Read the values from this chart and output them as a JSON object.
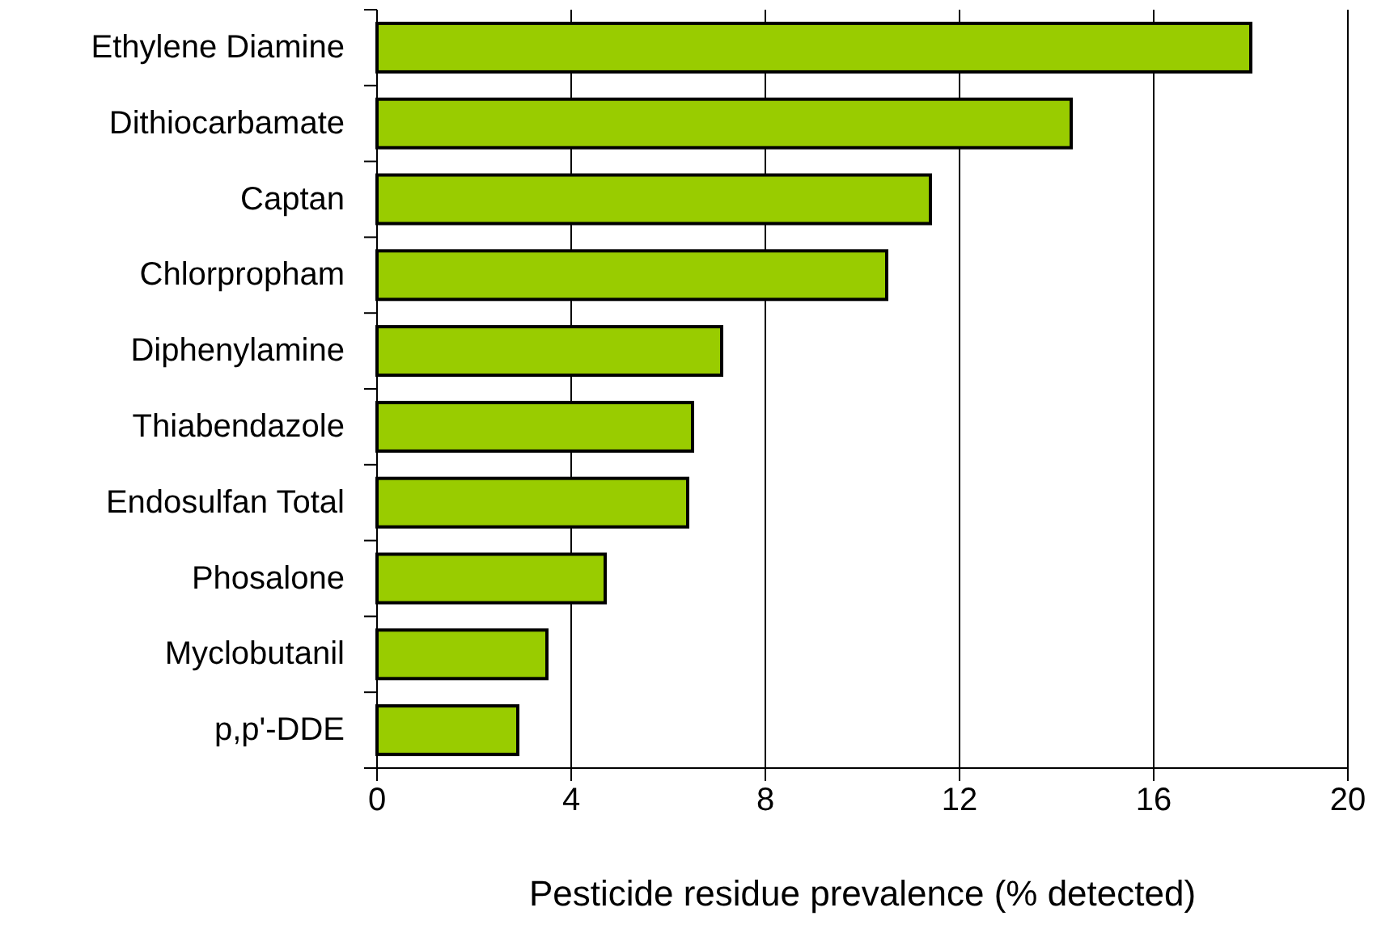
{
  "chart_data": {
    "type": "bar",
    "orientation": "horizontal",
    "xlabel": "Pesticide residue prevalence (% detected)",
    "categories": [
      "Ethylene Diamine",
      "Dithiocarbamate",
      "Captan",
      "Chlorpropham",
      "Diphenylamine",
      "Thiabendazole",
      "Endosulfan Total",
      "Phosalone",
      "Myclobutanil",
      "p,p'-DDE"
    ],
    "values": [
      18.0,
      14.3,
      11.4,
      10.5,
      7.1,
      6.5,
      6.4,
      4.7,
      3.5,
      2.9
    ],
    "color": "#99cc00",
    "xlim": [
      0,
      20
    ],
    "xticks": [
      0,
      4,
      8,
      12,
      16,
      20
    ],
    "grid": "x"
  }
}
